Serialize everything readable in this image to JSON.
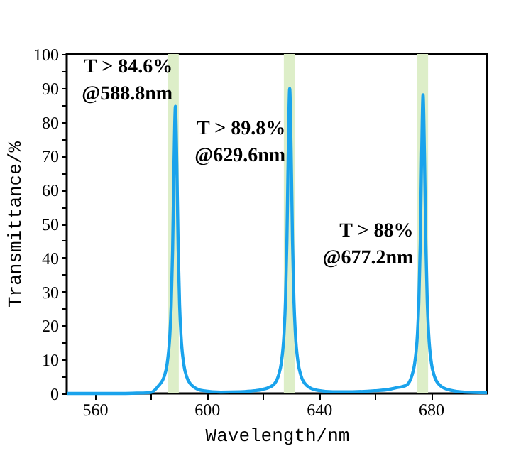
{
  "chart_data": {
    "type": "line",
    "xlabel": "Wavelength/nm",
    "ylabel": "Transmittance/%",
    "xlim": [
      550,
      700
    ],
    "xticks": [
      560,
      {
        "value": 580,
        "label": null
      },
      600,
      {
        "value": 620,
        "label": null
      },
      640,
      {
        "value": 660,
        "label": null
      },
      680
    ],
    "ylim": [
      0,
      100
    ],
    "yticks": [
      0,
      {
        "value": 5,
        "label": null
      },
      10,
      {
        "value": 15,
        "label": null
      },
      20,
      {
        "value": 25,
        "label": null
      },
      30,
      {
        "value": 35,
        "label": null
      },
      40,
      {
        "value": 45,
        "label": null
      },
      50,
      {
        "value": 55,
        "label": null
      },
      60,
      {
        "value": 65,
        "label": null
      },
      70,
      {
        "value": 75,
        "label": null
      },
      80,
      {
        "value": 85,
        "label": null
      },
      90,
      {
        "value": 95,
        "label": null
      },
      100
    ],
    "grid": false,
    "legend": false,
    "marker": "none",
    "line_style": "solid",
    "series": [
      {
        "color": "#1aa3ec",
        "x": [
          550,
          560,
          570,
          575,
          580,
          582.8,
          584.8,
          585.8,
          586.8,
          587.3,
          587.8,
          588.3,
          588.8,
          589.3,
          589.8,
          590.3,
          590.8,
          591.8,
          592.8,
          594.8,
          598.8,
          605,
          612,
          617,
          620,
          623.6,
          625.6,
          626.6,
          627.6,
          628.1,
          628.6,
          629.1,
          629.6,
          630.1,
          630.6,
          631.1,
          631.6,
          632.6,
          633.6,
          635.6,
          639.6,
          645,
          652,
          660,
          665,
          667.2,
          671.2,
          673.2,
          674.2,
          675.2,
          675.7,
          676.2,
          676.7,
          677.2,
          677.7,
          678.2,
          678.7,
          679.2,
          680.2,
          681.2,
          683.2,
          687.2,
          692,
          700
        ],
        "values": [
          0,
          0,
          0,
          0.1,
          0.3,
          2.3,
          5,
          8.5,
          17,
          26,
          42.3,
          67.7,
          84.6,
          67.7,
          42.3,
          26,
          17,
          8.5,
          5,
          2.3,
          0.8,
          0.4,
          0.5,
          0.8,
          1.2,
          2.4,
          5.3,
          9,
          18,
          27.6,
          44.9,
          71.8,
          89.8,
          71.8,
          44.9,
          27.6,
          18,
          9,
          5.3,
          2.4,
          0.9,
          0.5,
          0.5,
          0.8,
          1.2,
          1.6,
          2.4,
          5.2,
          8.8,
          17.6,
          27.1,
          44,
          70.4,
          88,
          70.4,
          44,
          27.1,
          17.6,
          8.8,
          5.2,
          2.4,
          0.9,
          0.4,
          0.2
        ]
      }
    ],
    "bands": [
      {
        "axis": "x",
        "from": 586,
        "to": 590,
        "color": "#ddeec8"
      },
      {
        "axis": "x",
        "from": 627.5,
        "to": 631.5,
        "color": "#ddeec8"
      },
      {
        "axis": "x",
        "from": 675,
        "to": 679,
        "color": "#ddeec8"
      }
    ],
    "annotations": [
      {
        "text": "T > 84.6%\n@588.8nm",
        "x": 588.8,
        "y": 84.6
      },
      {
        "text": "T > 89.8%\n@629.6nm",
        "x": 629.6,
        "y": 89.8
      },
      {
        "text": "T > 88%\n@677.2nm",
        "x": 676.3,
        "y": 48
      }
    ]
  }
}
